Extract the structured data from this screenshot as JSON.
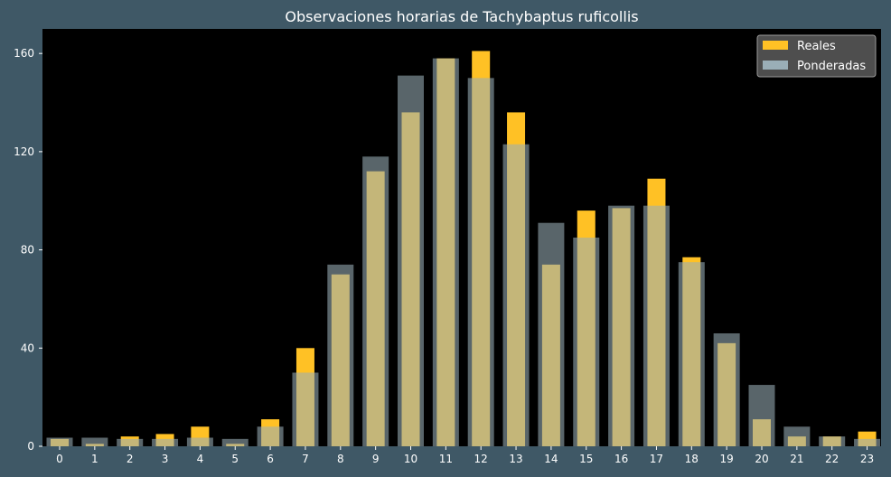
{
  "chart_data": {
    "type": "bar",
    "title": "Observaciones horarias de Tachybaptus ruficollis",
    "xlabel": "",
    "ylabel": "",
    "categories": [
      "0",
      "1",
      "2",
      "3",
      "4",
      "5",
      "6",
      "7",
      "8",
      "9",
      "10",
      "11",
      "12",
      "13",
      "14",
      "15",
      "16",
      "17",
      "18",
      "19",
      "20",
      "21",
      "22",
      "23"
    ],
    "series": [
      {
        "name": "Reales",
        "color": "#ffc125",
        "values": [
          3,
          1,
          4,
          5,
          8,
          1,
          11,
          40,
          70,
          112,
          136,
          158,
          161,
          136,
          74,
          96,
          97,
          109,
          77,
          42,
          11,
          4,
          4,
          6
        ]
      },
      {
        "name": "Ponderadas",
        "color": "#9aaeb7",
        "values": [
          3.5,
          3.5,
          3,
          3,
          3.5,
          3,
          8,
          30,
          74,
          118,
          151,
          158,
          150,
          123,
          91,
          85,
          98,
          98,
          75,
          46,
          25,
          8,
          4,
          3
        ]
      }
    ],
    "ylim": [
      0,
      170
    ],
    "yticks": [
      0,
      40,
      80,
      120,
      160
    ],
    "grid": false,
    "legend_position": "top-right",
    "background": "#000000",
    "figure_background": "#3f5866"
  }
}
